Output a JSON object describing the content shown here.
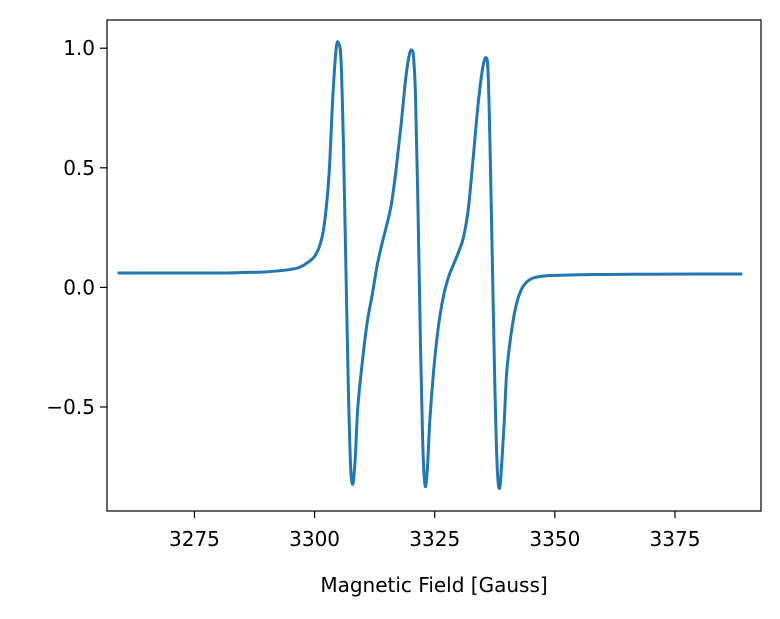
{
  "chart_data": {
    "type": "line",
    "title": "",
    "xlabel": "Magnetic Field [Gauss]",
    "ylabel": "",
    "xlim": [
      3256.8,
      3392.9
    ],
    "ylim": [
      -0.935,
      1.118
    ],
    "grid": false,
    "legend": "none",
    "x_ticks": [
      3275,
      3300,
      3325,
      3350,
      3375
    ],
    "x_tick_labels": [
      "3275",
      "3300",
      "3325",
      "3350",
      "3375"
    ],
    "y_ticks": [
      -0.5,
      0.0,
      0.5,
      1.0
    ],
    "y_tick_labels": [
      "−0.5",
      "0.0",
      "0.5",
      "1.0"
    ],
    "series": [
      {
        "color": "#1f77b4",
        "x": [
          3259,
          3270,
          3280,
          3285,
          3290,
          3295,
          3297,
          3299,
          3300,
          3301,
          3302,
          3303,
          3303.8,
          3304.5,
          3305,
          3305.5,
          3306,
          3306.5,
          3307,
          3307.5,
          3308,
          3308.5,
          3309,
          3310,
          3311,
          3312,
          3313,
          3314,
          3315,
          3316,
          3317,
          3318,
          3319,
          3319.8,
          3320.3,
          3320.6,
          3321,
          3321.5,
          3322,
          3322.5,
          3323,
          3323.5,
          3324,
          3325,
          3326,
          3327,
          3328,
          3329,
          3330,
          3331,
          3332,
          3333,
          3334,
          3335,
          3335.7,
          3336.1,
          3336.5,
          3337,
          3337.5,
          3338,
          3338.5,
          3339,
          3339.5,
          3340,
          3341,
          3342,
          3343,
          3344,
          3345,
          3346,
          3348,
          3350,
          3355,
          3360,
          3370,
          3380,
          3389
        ],
        "y": [
          0.06,
          0.06,
          0.06,
          0.062,
          0.065,
          0.075,
          0.085,
          0.11,
          0.13,
          0.17,
          0.26,
          0.47,
          0.8,
          1.0,
          1.02,
          0.95,
          0.6,
          0.1,
          -0.4,
          -0.75,
          -0.82,
          -0.7,
          -0.5,
          -0.3,
          -0.14,
          -0.03,
          0.09,
          0.18,
          0.26,
          0.35,
          0.5,
          0.68,
          0.88,
          0.98,
          0.99,
          0.96,
          0.8,
          0.35,
          -0.2,
          -0.65,
          -0.83,
          -0.75,
          -0.55,
          -0.3,
          -0.13,
          -0.02,
          0.05,
          0.1,
          0.15,
          0.21,
          0.33,
          0.54,
          0.76,
          0.92,
          0.96,
          0.9,
          0.6,
          0.1,
          -0.4,
          -0.75,
          -0.84,
          -0.72,
          -0.55,
          -0.35,
          -0.18,
          -0.07,
          -0.01,
          0.02,
          0.035,
          0.042,
          0.048,
          0.05,
          0.053,
          0.054,
          0.055,
          0.056,
          0.056
        ]
      }
    ]
  }
}
